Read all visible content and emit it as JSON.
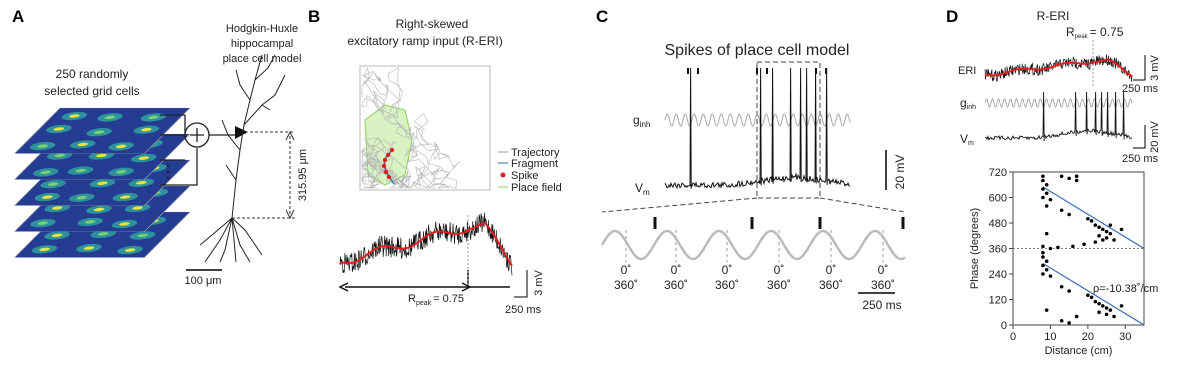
{
  "panel_a": {
    "label": "A",
    "grid_title": [
      "250 randomly",
      "selected grid cells"
    ],
    "model_title": [
      "Hodgkin-Huxle",
      "hippocampal",
      "place cell model"
    ],
    "height_scale": "315.95 μm",
    "length_scale": "100 μm"
  },
  "panel_b": {
    "label": "B",
    "title": [
      "Right-skewed",
      "excitatory ramp input (R-ERI)"
    ],
    "legend": [
      "Trajectory",
      "Fragment",
      "Spike",
      "Place field"
    ],
    "r_symbol": "R",
    "r_sub": "peak",
    "r_value": "= 0.75",
    "voltage_scale": "3 mV",
    "time_scale": "250 ms"
  },
  "panel_c": {
    "label": "C",
    "title": "Spikes of place cell model",
    "g_symbol": "g",
    "g_sub": "inh",
    "v_symbol": "V",
    "v_sub": "m",
    "voltage_scale": "20 mV",
    "phase_start": "0˚",
    "phase_end": "360˚",
    "time_scale": "250 ms"
  },
  "panel_d": {
    "label": "D",
    "title": "R-ERI",
    "r_symbol": "R",
    "r_sub": "peak",
    "r_value": "= 0.75",
    "eri_label": "ERI",
    "eri_voltage_scale": "3 mV",
    "eri_time_scale": "250 ms",
    "g_symbol": "g",
    "g_sub": "inh",
    "v_symbol": "V",
    "v_sub": "m",
    "vm_voltage_scale": "20 mV",
    "vm_time_scale": "250 ms"
  },
  "chart_data": {
    "type": "scatter",
    "xlabel": "Distance (cm)",
    "ylabel": "Phase (degrees)",
    "annotation": "ρ=-10.38˚/cm",
    "xlim": [
      0,
      35
    ],
    "ylim": [
      0,
      720
    ],
    "xticks": [
      0,
      10,
      20,
      30
    ],
    "yticks": [
      0,
      120,
      240,
      360,
      480,
      600,
      720
    ],
    "reference_y": 360,
    "series": [
      {
        "color": "#000000",
        "x": [
          8,
          8,
          9,
          8,
          9,
          8,
          10,
          9,
          13,
          15,
          17,
          17,
          20,
          21,
          22,
          23,
          24,
          25,
          26,
          23,
          25,
          27,
          26,
          29,
          13,
          15,
          9,
          8,
          10,
          12,
          16,
          19,
          22,
          24,
          8,
          8,
          9,
          8,
          9,
          8,
          10,
          13,
          15,
          20,
          21,
          22,
          23,
          24,
          25,
          26,
          23,
          25,
          27,
          29,
          13,
          15,
          17,
          9
        ],
        "values": [
          700,
          680,
          660,
          640,
          620,
          600,
          590,
          560,
          700,
          690,
          700,
          680,
          500,
          490,
          470,
          460,
          450,
          440,
          430,
          420,
          410,
          400,
          470,
          450,
          540,
          520,
          430,
          370,
          360,
          365,
          370,
          380,
          390,
          400,
          340,
          320,
          300,
          280,
          260,
          240,
          230,
          180,
          160,
          140,
          130,
          110,
          100,
          90,
          80,
          70,
          60,
          50,
          40,
          90,
          20,
          10,
          40,
          70
        ]
      }
    ],
    "fit_lines": [
      {
        "color": "#3a6fb5",
        "x": [
          8,
          35
        ],
        "values": [
          650,
          360
        ]
      },
      {
        "color": "#3a6fb5",
        "x": [
          8,
          35
        ],
        "values": [
          290,
          0
        ]
      }
    ]
  }
}
